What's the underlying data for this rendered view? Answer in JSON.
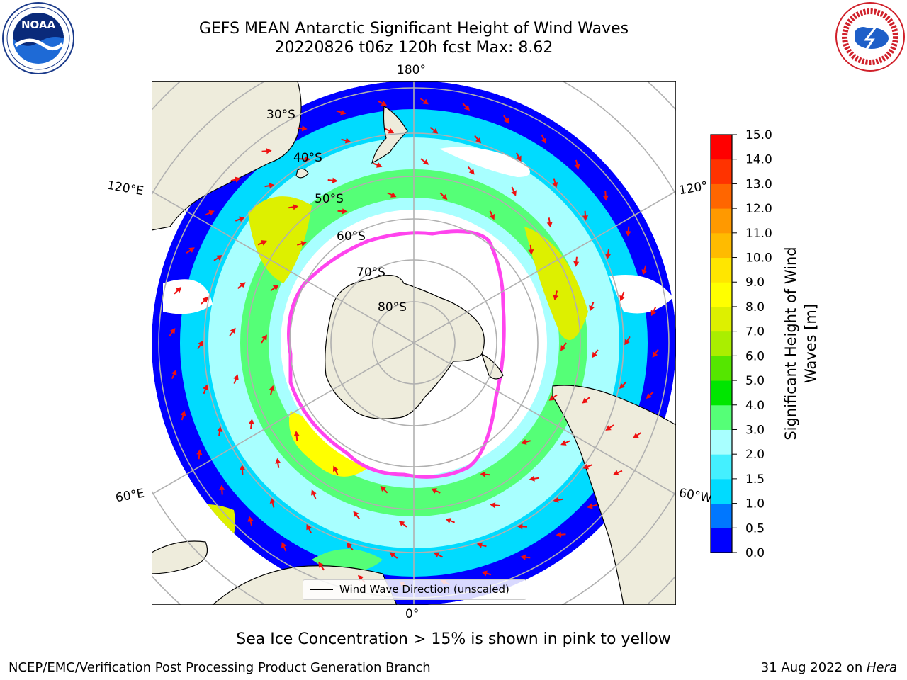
{
  "header": {
    "title_line1": "GEFS MEAN Antarctic Significant Height of Wind Waves",
    "title_line2": "20220826 t06z 120h fcst   Max: 8.62"
  },
  "logos": {
    "left": {
      "icon": "noaa-logo",
      "text": "NOAA"
    },
    "right": {
      "icon": "national-weather-service-logo"
    }
  },
  "map": {
    "projection": "south-polar-stereographic",
    "longitude_labels": {
      "top": "180°",
      "bottom": "0°",
      "left_upper": "120°E",
      "left_lower": "60°E",
      "right_upper": "120°",
      "right_lower": "60°W"
    },
    "latitude_labels": [
      "30°S",
      "40°S",
      "50°S",
      "60°S",
      "70°S",
      "80°S"
    ],
    "legend_label": "Wind Wave Direction (unscaled)",
    "colors": {
      "land": "#eeecdc",
      "ocean_background": "#ffffff",
      "gridlines": "#b0b0b0",
      "sea_ice_edge": "#ff44ee",
      "arrows": "#ee1111"
    }
  },
  "colorbar": {
    "label_line1": "Significant Height of Wind",
    "label_line2": "Waves [m]",
    "ticks": [
      "0.0",
      "0.5",
      "1.0",
      "1.5",
      "2.0",
      "3.0",
      "4.0",
      "5.0",
      "6.0",
      "7.0",
      "8.0",
      "9.0",
      "10.0",
      "11.0",
      "12.0",
      "13.0",
      "14.0",
      "15.0"
    ],
    "colors": [
      "#0000ff",
      "#0077ff",
      "#00dbff",
      "#44f0ff",
      "#a8ffff",
      "#55ff77",
      "#00e600",
      "#55e600",
      "#aaee00",
      "#ddf000",
      "#ffff00",
      "#ffe600",
      "#ffbb00",
      "#ff9900",
      "#ff6600",
      "#ff3300",
      "#ff0000"
    ]
  },
  "footer": {
    "note": "Sea Ice Concentration > 15% is shown in pink to yellow",
    "left": "NCEP/EMC/Verification Post Processing Product Generation Branch",
    "right_date": "31 Aug 2022 on ",
    "right_system": "Hera"
  }
}
